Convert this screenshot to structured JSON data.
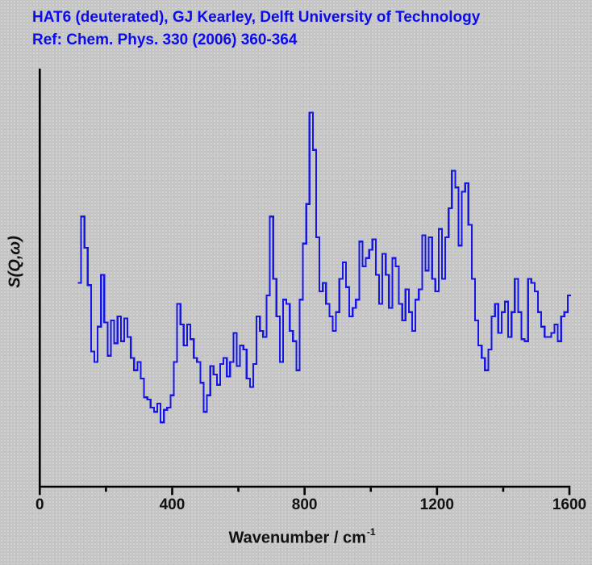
{
  "title": {
    "line1": "HAT6 (deuterated), GJ Kearley, Delft University of Technology",
    "line2": "Ref: Chem. Phys. 330 (2006) 360-364",
    "color": "#0b0bee"
  },
  "chart_data": {
    "type": "line",
    "style": "histogram-step",
    "line_color": "#1515e6",
    "axis_color": "#000000",
    "background_color": "#c5c5c5",
    "title": "",
    "xlabel_main": "Wavenumber / cm",
    "xlabel_sup": "-1",
    "ylabel": "S(Q,ω)",
    "xlim": [
      0,
      1600
    ],
    "ylim": [
      0,
      1
    ],
    "y_units": "arbitrary intensity (no y-axis ticks or labels)",
    "bin_width": 10,
    "grid": false,
    "legend": "none",
    "x_ticks": [
      {
        "value": 0,
        "label": "0",
        "major": true
      },
      {
        "value": 200,
        "label": "",
        "major": false
      },
      {
        "value": 400,
        "label": "400",
        "major": true
      },
      {
        "value": 600,
        "label": "",
        "major": false
      },
      {
        "value": 800,
        "label": "800",
        "major": true
      },
      {
        "value": 1000,
        "label": "",
        "major": false
      },
      {
        "value": 1200,
        "label": "1200",
        "major": true
      },
      {
        "value": 1400,
        "label": "",
        "major": false
      },
      {
        "value": 1600,
        "label": "1600",
        "major": true
      }
    ],
    "x": [
      120,
      130,
      140,
      150,
      160,
      170,
      180,
      190,
      200,
      210,
      220,
      230,
      240,
      250,
      260,
      270,
      280,
      290,
      300,
      310,
      320,
      330,
      340,
      350,
      360,
      370,
      380,
      390,
      400,
      410,
      420,
      430,
      440,
      450,
      460,
      470,
      480,
      490,
      500,
      510,
      520,
      530,
      540,
      550,
      560,
      570,
      580,
      590,
      600,
      610,
      620,
      630,
      640,
      650,
      660,
      670,
      680,
      690,
      700,
      710,
      720,
      730,
      740,
      750,
      760,
      770,
      780,
      790,
      800,
      810,
      820,
      830,
      840,
      850,
      860,
      870,
      880,
      890,
      900,
      910,
      920,
      930,
      940,
      950,
      960,
      970,
      980,
      990,
      1000,
      1010,
      1020,
      1030,
      1040,
      1050,
      1060,
      1070,
      1080,
      1090,
      1100,
      1110,
      1120,
      1130,
      1140,
      1150,
      1160,
      1170,
      1180,
      1190,
      1200,
      1210,
      1220,
      1230,
      1240,
      1250,
      1260,
      1270,
      1280,
      1290,
      1300,
      1310,
      1320,
      1330,
      1340,
      1350,
      1360,
      1370,
      1380,
      1390,
      1400,
      1410,
      1420,
      1430,
      1440,
      1450,
      1460,
      1470,
      1480,
      1490,
      1500,
      1510,
      1520,
      1530,
      1540,
      1550,
      1560,
      1570,
      1580,
      1590,
      1600
    ],
    "s": [
      0.49,
      0.65,
      0.575,
      0.485,
      0.325,
      0.3,
      0.385,
      0.51,
      0.395,
      0.315,
      0.4,
      0.345,
      0.41,
      0.35,
      0.405,
      0.36,
      0.31,
      0.28,
      0.3,
      0.26,
      0.215,
      0.21,
      0.19,
      0.18,
      0.2,
      0.155,
      0.185,
      0.19,
      0.22,
      0.3,
      0.44,
      0.39,
      0.34,
      0.39,
      0.355,
      0.31,
      0.3,
      0.25,
      0.18,
      0.22,
      0.29,
      0.27,
      0.245,
      0.295,
      0.31,
      0.265,
      0.3,
      0.37,
      0.29,
      0.34,
      0.33,
      0.26,
      0.24,
      0.295,
      0.41,
      0.375,
      0.36,
      0.46,
      0.65,
      0.5,
      0.41,
      0.3,
      0.45,
      0.44,
      0.375,
      0.35,
      0.28,
      0.45,
      0.585,
      0.68,
      0.9,
      0.81,
      0.6,
      0.47,
      0.49,
      0.44,
      0.41,
      0.375,
      0.42,
      0.5,
      0.54,
      0.48,
      0.41,
      0.43,
      0.45,
      0.59,
      0.53,
      0.55,
      0.57,
      0.595,
      0.51,
      0.44,
      0.56,
      0.51,
      0.43,
      0.55,
      0.53,
      0.44,
      0.4,
      0.475,
      0.42,
      0.375,
      0.45,
      0.475,
      0.605,
      0.52,
      0.6,
      0.5,
      0.47,
      0.62,
      0.5,
      0.6,
      0.67,
      0.76,
      0.72,
      0.58,
      0.71,
      0.73,
      0.63,
      0.5,
      0.4,
      0.34,
      0.31,
      0.28,
      0.33,
      0.41,
      0.44,
      0.37,
      0.42,
      0.445,
      0.36,
      0.42,
      0.5,
      0.42,
      0.355,
      0.35,
      0.5,
      0.49,
      0.47,
      0.42,
      0.385,
      0.36,
      0.36,
      0.37,
      0.39,
      0.35,
      0.41,
      0.42,
      0.46
    ]
  }
}
